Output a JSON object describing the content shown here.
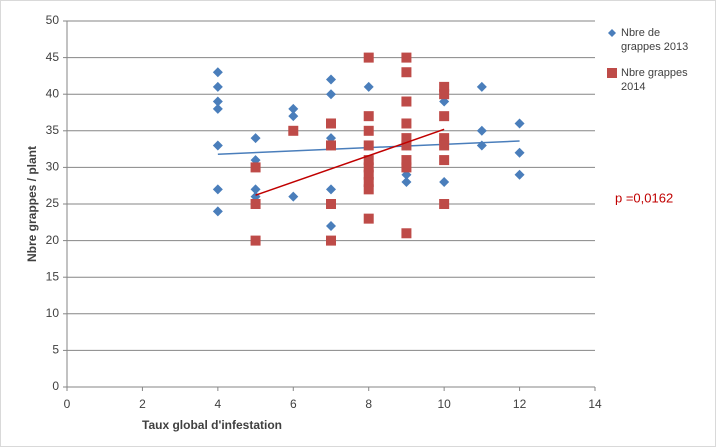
{
  "chart_data": {
    "type": "scatter",
    "xlabel": "Taux global d'infestation",
    "ylabel": "Nbre grappes / plant",
    "annotation": "p =0,0162",
    "annotation_color": "#c00000",
    "xlim": [
      0,
      14
    ],
    "xticks": [
      0,
      2,
      4,
      6,
      8,
      10,
      12,
      14
    ],
    "ylim": [
      0,
      50
    ],
    "yticks": [
      0,
      5,
      10,
      15,
      20,
      25,
      30,
      35,
      40,
      45,
      50
    ],
    "grid": true,
    "legend": "right",
    "series": [
      {
        "name": "Nbre de grappes 2013",
        "color": "#4a7ebb",
        "marker": "diamond",
        "x": [
          4,
          4,
          4,
          4,
          4,
          4,
          4,
          5,
          5,
          5,
          5,
          6,
          6,
          6,
          7,
          7,
          7,
          7,
          7,
          7,
          8,
          9,
          9,
          9,
          10,
          10,
          10,
          11,
          11,
          11,
          12,
          12,
          12
        ],
        "values": [
          43,
          41,
          39,
          38,
          33,
          27,
          24,
          34,
          31,
          27,
          26,
          38,
          37,
          26,
          42,
          40,
          34,
          33,
          27,
          22,
          41,
          33,
          29,
          28,
          40,
          39,
          28,
          41,
          35,
          33,
          36,
          32,
          29
        ],
        "trendline": {
          "x": [
            4,
            12
          ],
          "y": [
            31.8,
            33.6
          ]
        }
      },
      {
        "name": "Nbre grappes 2014",
        "color": "#be4b48",
        "marker": "square",
        "x": [
          5,
          5,
          5,
          6,
          7,
          7,
          7,
          7,
          8,
          8,
          8,
          8,
          8,
          8,
          8,
          8,
          8,
          8,
          9,
          9,
          9,
          9,
          9,
          9,
          9,
          9,
          9,
          10,
          10,
          10,
          10,
          10,
          10,
          10
        ],
        "values": [
          30,
          25,
          20,
          35,
          36,
          33,
          25,
          20,
          45,
          37,
          35,
          33,
          31,
          30,
          29,
          28,
          27,
          23,
          45,
          43,
          39,
          36,
          34,
          33,
          31,
          30,
          21,
          41,
          40,
          37,
          34,
          33,
          31,
          25
        ],
        "trendline": {
          "x": [
            5,
            10
          ],
          "y": [
            26.2,
            35.2
          ]
        }
      }
    ]
  }
}
